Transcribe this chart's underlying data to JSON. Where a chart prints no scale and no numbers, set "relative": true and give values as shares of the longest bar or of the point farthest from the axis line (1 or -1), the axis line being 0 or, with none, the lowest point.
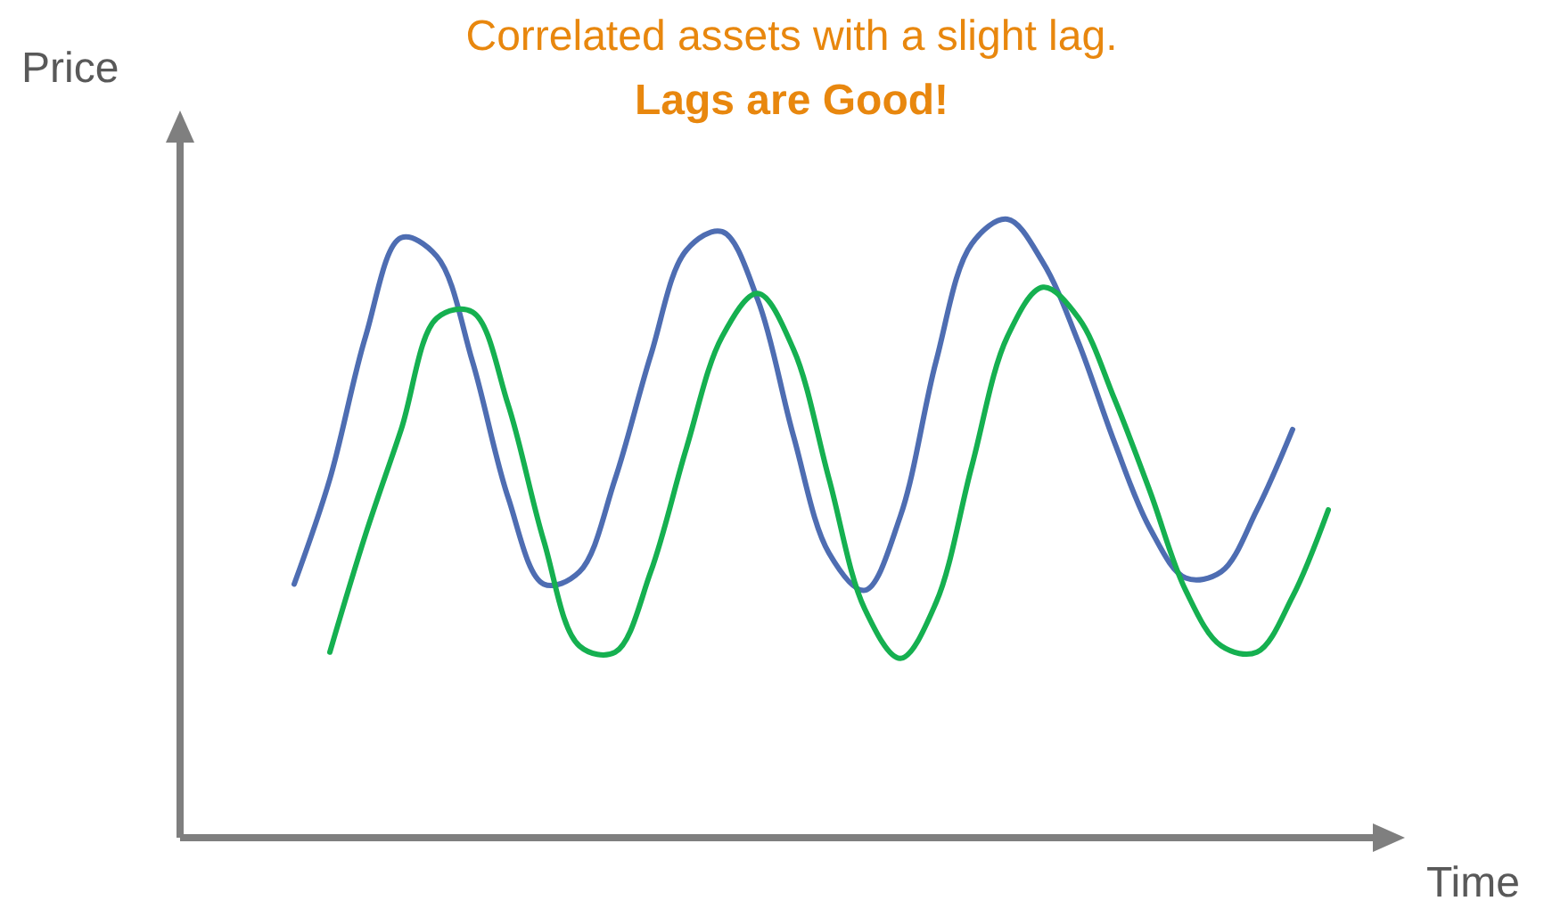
{
  "chart_data": {
    "type": "line",
    "title": "Correlated assets with a slight lag.",
    "subtitle": "Lags are Good!",
    "xlabel": "Time",
    "ylabel": "Price",
    "relative": true,
    "categories": [
      null,
      null,
      null,
      null,
      null,
      null,
      null,
      null,
      null,
      null,
      null,
      null,
      null,
      null,
      null,
      null,
      null,
      null,
      null,
      null,
      null,
      null,
      null,
      null,
      null,
      null,
      null,
      null,
      null,
      null
    ],
    "series": [
      {
        "color": "#4e6db2",
        "values": [
          0.41,
          0.58,
          0.81,
          0.97,
          0.94,
          0.77,
          0.55,
          0.41,
          0.43,
          0.58,
          0.78,
          0.95,
          0.98,
          0.87,
          0.65,
          0.46,
          0.4,
          0.52,
          0.77,
          0.96,
          1,
          0.93,
          0.8,
          0.64,
          0.5,
          0.42,
          0.43,
          0.53,
          0.66,
          null
        ]
      },
      {
        "color": "#15b050",
        "values": [
          null,
          0.3,
          0.49,
          0.66,
          0.84,
          0.85,
          0.7,
          0.48,
          0.31,
          0.3,
          0.43,
          0.63,
          0.81,
          0.88,
          0.79,
          0.58,
          0.37,
          0.29,
          0.38,
          0.6,
          0.81,
          0.89,
          0.84,
          0.71,
          0.56,
          0.4,
          0.31,
          0.3,
          0.39,
          0.53
        ]
      }
    ]
  }
}
